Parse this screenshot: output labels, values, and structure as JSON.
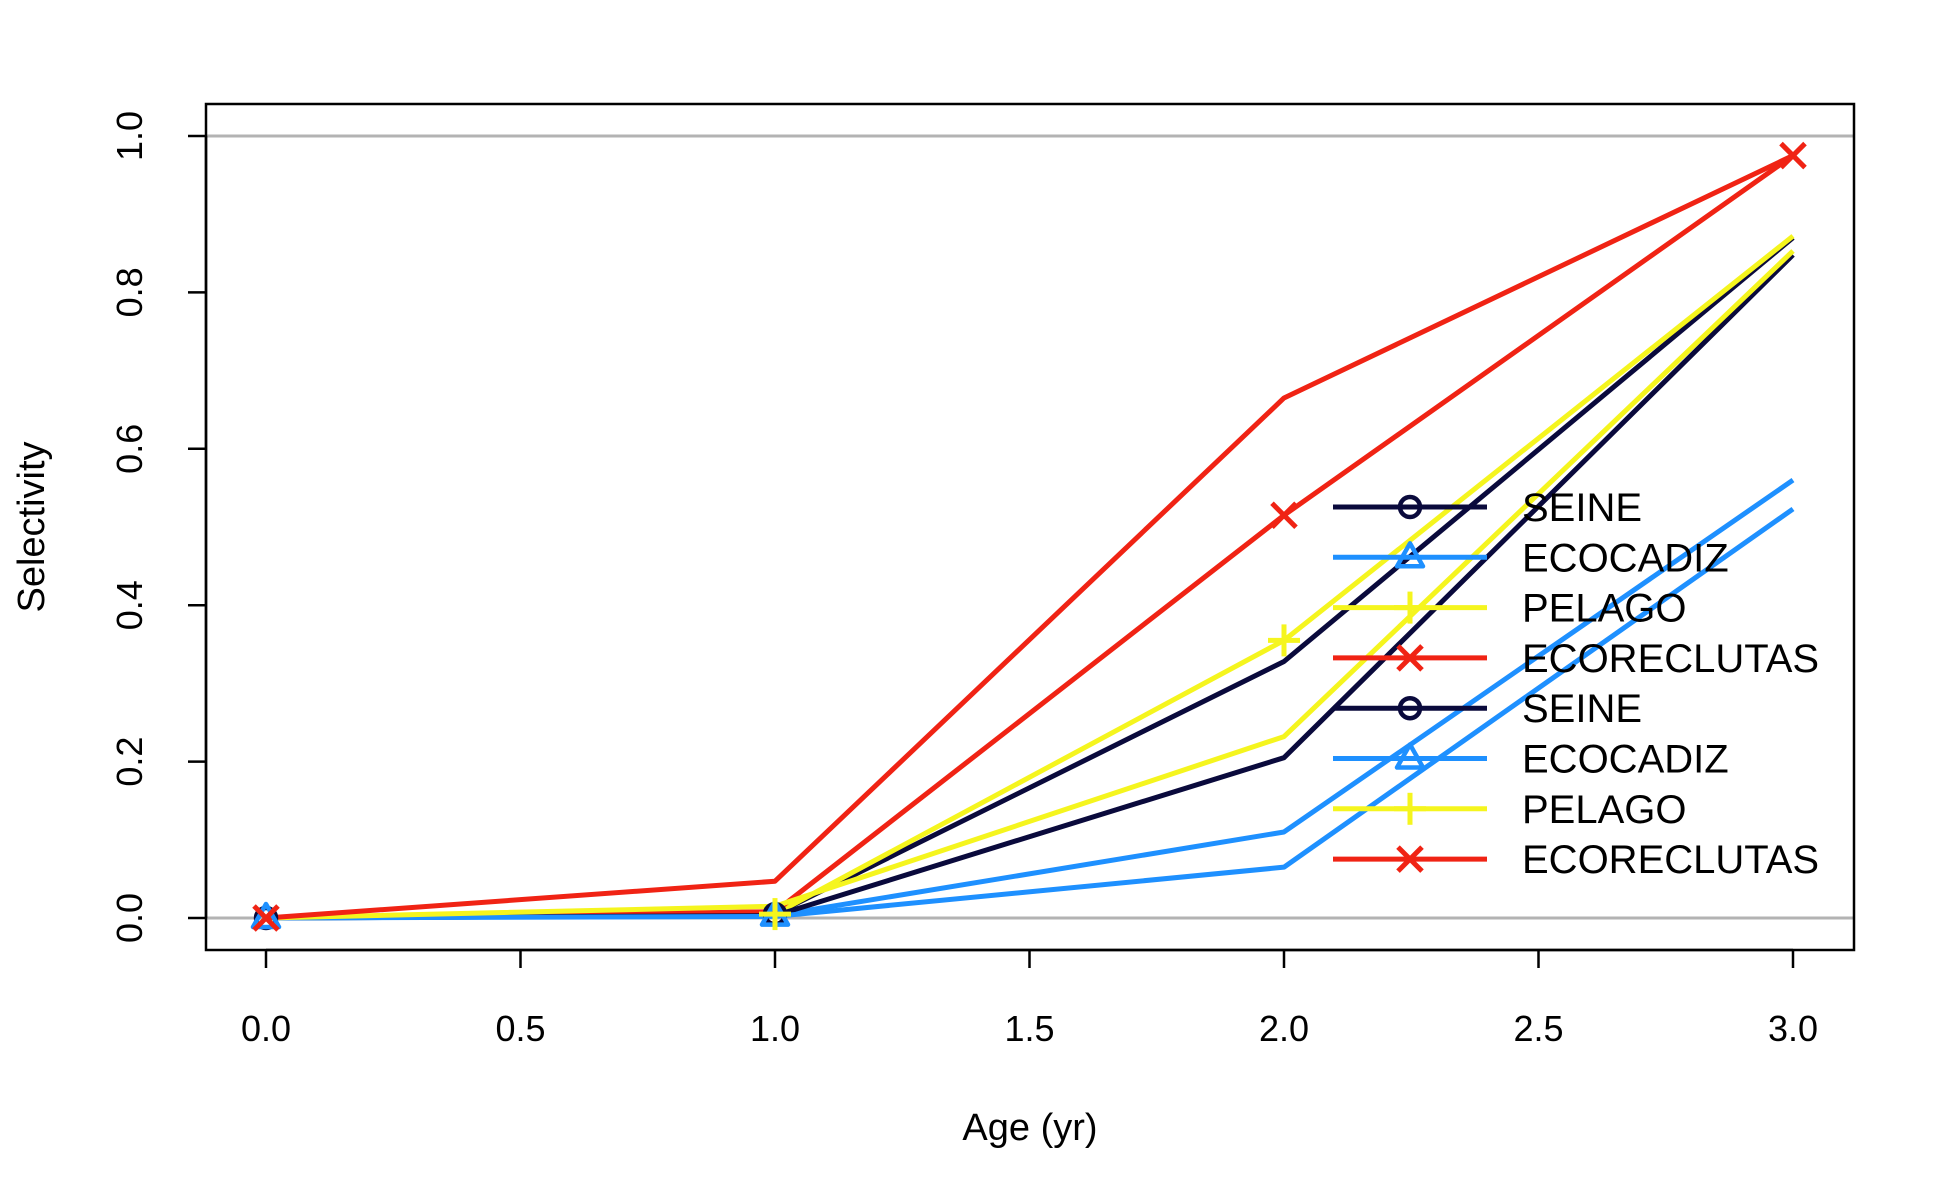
{
  "chart_data": {
    "type": "line",
    "title": "",
    "xlabel": "Age (yr)",
    "ylabel": "Selectivity",
    "xlim": [
      0.0,
      3.0
    ],
    "ylim": [
      0.0,
      1.0
    ],
    "xticks": [
      "0.0",
      "0.5",
      "1.0",
      "1.5",
      "2.0",
      "2.5",
      "3.0"
    ],
    "yticks": [
      "0.0",
      "0.2",
      "0.4",
      "0.6",
      "0.8",
      "1.0"
    ],
    "reference_lines_y": [
      0.0,
      1.0
    ],
    "grid": false,
    "legend_position": "right",
    "x": [
      0,
      1,
      2,
      3
    ],
    "series": [
      {
        "name": "SEINE",
        "color": "#0a0a3c",
        "marker": "circle",
        "values": [
          0.0,
          0.005,
          0.328,
          0.87
        ]
      },
      {
        "name": "ECOCADIZ",
        "color": "#1e90ff",
        "marker": "triangle",
        "values": [
          0.0,
          0.003,
          0.11,
          0.56
        ]
      },
      {
        "name": "PELAGO",
        "color": "#f5f51e",
        "marker": "plus",
        "values": [
          0.0,
          0.005,
          0.355,
          0.872
        ]
      },
      {
        "name": "ECORECLUTAS",
        "color": "#f02314",
        "marker": "cross",
        "values": [
          0.0,
          0.008,
          0.515,
          0.975
        ]
      },
      {
        "name": "SEINE",
        "color": "#0a0a3c",
        "marker": "circle",
        "values": [
          0.0,
          0.003,
          0.205,
          0.848
        ]
      },
      {
        "name": "ECOCADIZ",
        "color": "#1e90ff",
        "marker": "triangle",
        "values": [
          0.0,
          0.002,
          0.065,
          0.523
        ]
      },
      {
        "name": "PELAGO",
        "color": "#f5f51e",
        "marker": "plus",
        "values": [
          0.0,
          0.015,
          0.232,
          0.853
        ]
      },
      {
        "name": "ECORECLUTAS",
        "color": "#f02314",
        "marker": "cross",
        "values": [
          0.0,
          0.047,
          0.665,
          0.975
        ]
      }
    ],
    "marked_points": [
      {
        "series": 0,
        "x": [
          0,
          1
        ]
      },
      {
        "series": 1,
        "x": [
          0,
          1
        ]
      },
      {
        "series": 2,
        "x": [
          1,
          2
        ]
      },
      {
        "series": 3,
        "x": [
          0,
          2,
          3
        ]
      }
    ]
  }
}
